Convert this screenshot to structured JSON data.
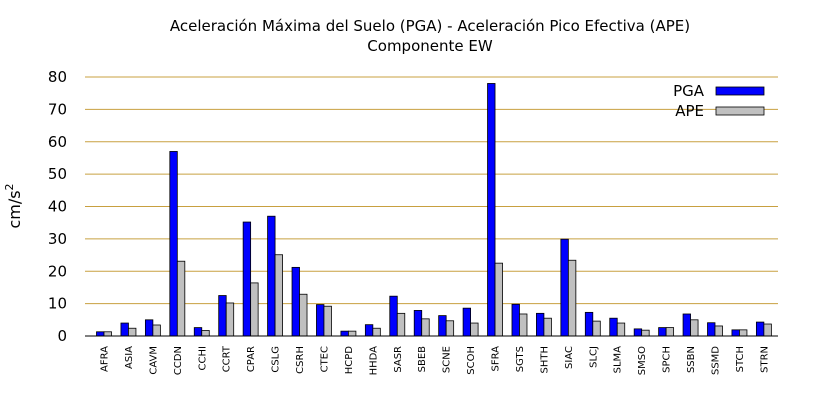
{
  "chart_data": {
    "type": "bar",
    "title": "Aceleración Máxima del Suelo (PGA) -  Aceleración Pico Efectiva (APE)",
    "subtitle": "Componente EW",
    "ylabel": "cm/s",
    "ylabel_sup": "2",
    "ylim": [
      0,
      80
    ],
    "yticks": [
      0,
      10,
      20,
      30,
      40,
      50,
      60,
      70,
      80
    ],
    "grid": true,
    "legend_position": "top-right",
    "categories": [
      "AFRA",
      "ASIA",
      "CAVM",
      "CCDN",
      "CCHI",
      "CCRT",
      "CPAR",
      "CSLG",
      "CSRH",
      "CTEC",
      "HCPD",
      "HHDA",
      "SASR",
      "SBEB",
      "SCNE",
      "SCOH",
      "SFRA",
      "SGTS",
      "SHTH",
      "SIAC",
      "SLCJ",
      "SLMA",
      "SMSO",
      "SPCH",
      "SSBN",
      "SSMD",
      "STCH",
      "STRN"
    ],
    "series": [
      {
        "name": "PGA",
        "color": "#0000ff",
        "values": [
          1.3,
          4.0,
          5.0,
          57.0,
          2.6,
          12.5,
          35.2,
          37.0,
          21.2,
          9.7,
          1.5,
          3.5,
          12.3,
          7.9,
          6.3,
          8.6,
          78.0,
          9.8,
          7.0,
          29.9,
          7.3,
          5.5,
          2.2,
          2.6,
          6.8,
          4.1,
          1.9,
          4.3
        ]
      },
      {
        "name": "APE",
        "color": "#c0c0c0",
        "values": [
          1.3,
          2.4,
          3.4,
          23.1,
          1.7,
          10.2,
          16.4,
          25.1,
          12.9,
          9.2,
          1.5,
          2.4,
          7.0,
          5.3,
          4.7,
          4.0,
          22.5,
          6.8,
          5.5,
          23.4,
          4.6,
          4.0,
          1.8,
          2.6,
          5.0,
          3.1,
          1.9,
          3.7
        ]
      }
    ]
  }
}
